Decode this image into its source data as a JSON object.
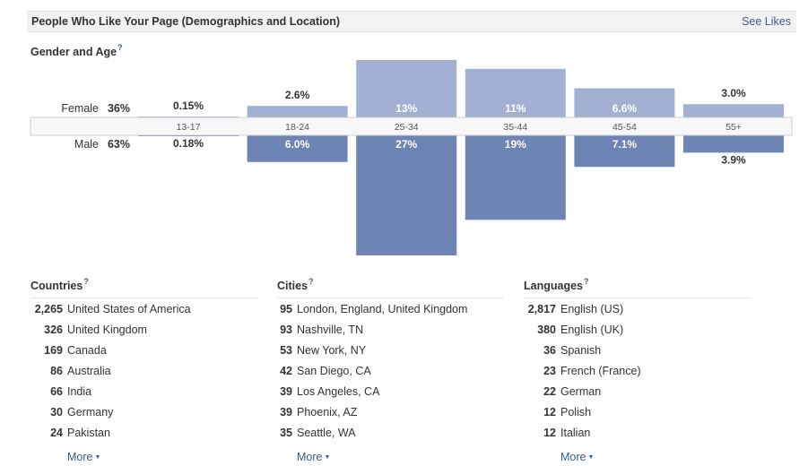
{
  "header": {
    "title": "People Who Like Your Page (Demographics and Location)",
    "see_likes": "See Likes"
  },
  "gender_age": {
    "heading": "Gender and Age",
    "help_mark": "?"
  },
  "chart_data": {
    "type": "bar",
    "categories": [
      "13-17",
      "18-24",
      "25-34",
      "35-44",
      "45-54",
      "55+"
    ],
    "series": [
      {
        "name": "Female",
        "label": "Female",
        "total": "36%",
        "values": [
          0.15,
          2.6,
          13,
          11,
          6.6,
          3.0
        ],
        "value_labels": [
          "0.15%",
          "2.6%",
          "13%",
          "11%",
          "6.6%",
          "3.0%"
        ],
        "color": "#a2b0d4"
      },
      {
        "name": "Male",
        "label": "Male",
        "total": "63%",
        "values": [
          0.18,
          6.0,
          27,
          19,
          7.1,
          3.9
        ],
        "value_labels": [
          "0.18%",
          "6.0%",
          "27%",
          "19%",
          "7.1%",
          "3.9%"
        ],
        "color": "#6d84b4"
      }
    ]
  },
  "countries": {
    "heading": "Countries",
    "help_mark": "?",
    "rows": [
      {
        "count": "2,265",
        "name": "United States of America"
      },
      {
        "count": "326",
        "name": "United Kingdom"
      },
      {
        "count": "169",
        "name": "Canada"
      },
      {
        "count": "86",
        "name": "Australia"
      },
      {
        "count": "66",
        "name": "India"
      },
      {
        "count": "30",
        "name": "Germany"
      },
      {
        "count": "24",
        "name": "Pakistan"
      }
    ],
    "more": "More"
  },
  "cities": {
    "heading": "Cities",
    "help_mark": "?",
    "rows": [
      {
        "count": "95",
        "name": "London, England, United Kingdom"
      },
      {
        "count": "93",
        "name": "Nashville, TN"
      },
      {
        "count": "53",
        "name": "New York, NY"
      },
      {
        "count": "42",
        "name": "San Diego, CA"
      },
      {
        "count": "39",
        "name": "Los Angeles, CA"
      },
      {
        "count": "39",
        "name": "Phoenix, AZ"
      },
      {
        "count": "35",
        "name": "Seattle, WA"
      }
    ],
    "more": "More"
  },
  "languages": {
    "heading": "Languages",
    "help_mark": "?",
    "rows": [
      {
        "count": "2,817",
        "name": "English (US)"
      },
      {
        "count": "380",
        "name": "English (UK)"
      },
      {
        "count": "36",
        "name": "Spanish"
      },
      {
        "count": "23",
        "name": "French (France)"
      },
      {
        "count": "22",
        "name": "German"
      },
      {
        "count": "12",
        "name": "Polish"
      },
      {
        "count": "12",
        "name": "Italian"
      }
    ],
    "more": "More"
  },
  "colors": {
    "link": "#3b5998",
    "female_bar": "#a2b0d4",
    "male_bar": "#6d84b4"
  }
}
